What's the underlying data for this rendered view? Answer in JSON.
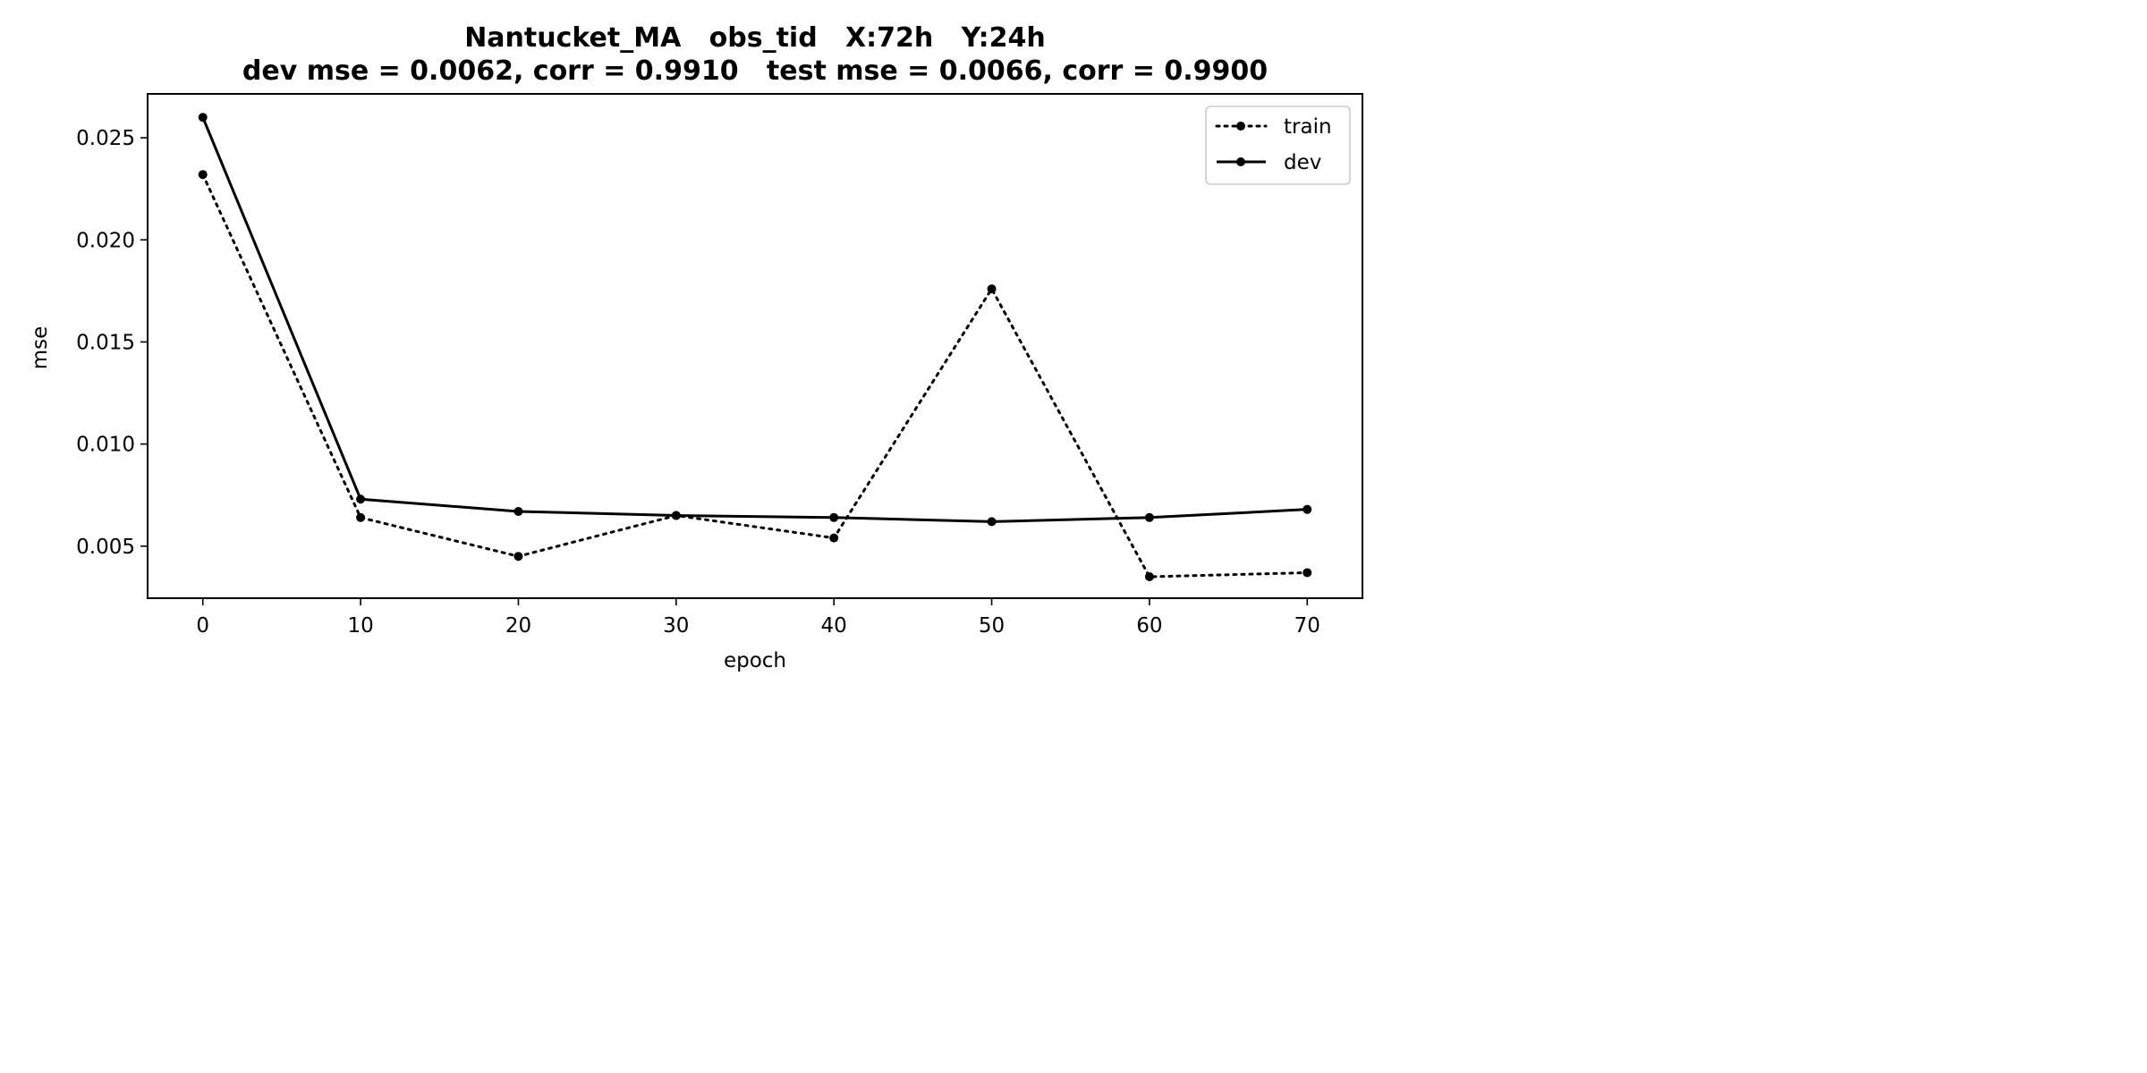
{
  "chart_data": {
    "type": "line",
    "title_line1": "Nantucket_MA   obs_tid   X:72h   Y:24h",
    "title_line2": "dev mse = 0.0062, corr = 0.9910   test mse = 0.0066, corr = 0.9900",
    "xlabel": "epoch",
    "ylabel": "mse",
    "xlim": [
      -3.5,
      73.5
    ],
    "ylim": [
      0.00245,
      0.02715
    ],
    "x_ticks": [
      0,
      10,
      20,
      30,
      40,
      50,
      60,
      70
    ],
    "x_tick_labels": [
      "0",
      "10",
      "20",
      "30",
      "40",
      "50",
      "60",
      "70"
    ],
    "y_ticks": [
      0.005,
      0.01,
      0.015,
      0.02,
      0.025
    ],
    "y_tick_labels": [
      "0.005",
      "0.010",
      "0.015",
      "0.020",
      "0.025"
    ],
    "grid": false,
    "legend_placement": "top-right",
    "x": [
      0,
      10,
      20,
      30,
      40,
      50,
      60,
      70
    ],
    "series": [
      {
        "name": "train",
        "style": "dotted",
        "color": "#000000",
        "values": [
          0.0232,
          0.0064,
          0.0045,
          0.0065,
          0.0054,
          0.0176,
          0.0035,
          0.0037
        ]
      },
      {
        "name": "dev",
        "style": "solid",
        "color": "#000000",
        "values": [
          0.026,
          0.0073,
          0.0067,
          0.0065,
          0.0064,
          0.0062,
          0.0064,
          0.0068
        ]
      }
    ]
  }
}
